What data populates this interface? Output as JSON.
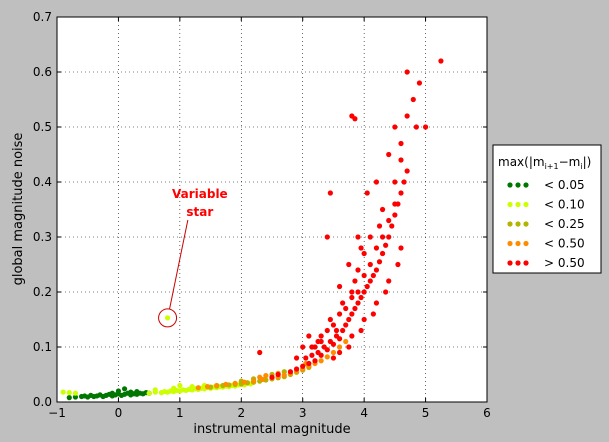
{
  "chart_data": {
    "type": "scatter",
    "xlabel": "instrumental magnitude",
    "ylabel": "global magnitude noise",
    "xlim": [
      -1,
      6
    ],
    "ylim": [
      0,
      0.7
    ],
    "x_ticks": [
      -1,
      0,
      1,
      2,
      3,
      4,
      5,
      6
    ],
    "x_tick_labels": [
      "−1",
      "0",
      "1",
      "2",
      "3",
      "4",
      "5",
      "6"
    ],
    "y_ticks": [
      0,
      0.1,
      0.2,
      0.3,
      0.4,
      0.5,
      0.6,
      0.7
    ],
    "y_tick_labels": [
      "0.0",
      "0.1",
      "0.2",
      "0.3",
      "0.4",
      "0.5",
      "0.6",
      "0.7"
    ],
    "grid": true,
    "legend": {
      "placement": "right",
      "title": "max(|m",
      "title_sub1": "i+1",
      "title_mid": "−m",
      "title_sub2": "i",
      "title_end": "|)",
      "entries": [
        {
          "label": "< 0.05",
          "color": "#007700"
        },
        {
          "label": "< 0.10",
          "color": "#ccff00"
        },
        {
          "label": "< 0.25",
          "color": "#b3b300"
        },
        {
          "label": "< 0.50",
          "color": "#ff8c00"
        },
        {
          "label": "> 0.50",
          "color": "#ff0000"
        }
      ]
    },
    "annotation": {
      "text_line1": "Variable",
      "text_line2": "star",
      "color": "#ff0000",
      "point": [
        0.8,
        0.153
      ],
      "text_anchor": [
        1.0,
        0.36
      ]
    },
    "series": [
      {
        "color": "#007700",
        "points": [
          [
            -0.8,
            0.008
          ],
          [
            -0.7,
            0.009
          ],
          [
            -0.6,
            0.01
          ],
          [
            -0.55,
            0.011
          ],
          [
            -0.5,
            0.009
          ],
          [
            -0.45,
            0.012
          ],
          [
            -0.4,
            0.01
          ],
          [
            -0.35,
            0.011
          ],
          [
            -0.3,
            0.013
          ],
          [
            -0.25,
            0.01
          ],
          [
            -0.2,
            0.012
          ],
          [
            -0.15,
            0.014
          ],
          [
            -0.1,
            0.011
          ],
          [
            -0.05,
            0.013
          ],
          [
            0.0,
            0.015
          ],
          [
            0.05,
            0.012
          ],
          [
            0.1,
            0.014
          ],
          [
            0.15,
            0.016
          ],
          [
            0.2,
            0.013
          ],
          [
            0.25,
            0.015
          ],
          [
            0.3,
            0.014
          ],
          [
            0.35,
            0.016
          ],
          [
            0.4,
            0.015
          ],
          [
            0.45,
            0.017
          ],
          [
            0.5,
            0.016
          ],
          [
            0.1,
            0.024
          ],
          [
            0.0,
            0.02
          ],
          [
            -0.1,
            0.016
          ],
          [
            0.2,
            0.018
          ],
          [
            0.3,
            0.019
          ]
        ]
      },
      {
        "color": "#ccff00",
        "points": [
          [
            -0.9,
            0.018
          ],
          [
            -0.8,
            0.017
          ],
          [
            -0.7,
            0.016
          ],
          [
            0.5,
            0.016
          ],
          [
            0.6,
            0.018
          ],
          [
            0.7,
            0.017
          ],
          [
            0.75,
            0.019
          ],
          [
            0.8,
            0.018
          ],
          [
            0.85,
            0.02
          ],
          [
            0.9,
            0.019
          ],
          [
            0.95,
            0.021
          ],
          [
            1.0,
            0.02
          ],
          [
            1.05,
            0.022
          ],
          [
            1.1,
            0.021
          ],
          [
            1.15,
            0.023
          ],
          [
            1.2,
            0.022
          ],
          [
            1.25,
            0.024
          ],
          [
            1.3,
            0.023
          ],
          [
            1.35,
            0.025
          ],
          [
            1.4,
            0.024
          ],
          [
            1.45,
            0.026
          ],
          [
            1.5,
            0.025
          ],
          [
            1.55,
            0.027
          ],
          [
            1.6,
            0.026
          ],
          [
            1.65,
            0.028
          ],
          [
            1.7,
            0.027
          ],
          [
            1.75,
            0.029
          ],
          [
            1.8,
            0.028
          ],
          [
            1.85,
            0.03
          ],
          [
            1.9,
            0.029
          ],
          [
            1.95,
            0.031
          ],
          [
            2.0,
            0.032
          ],
          [
            2.05,
            0.031
          ],
          [
            2.1,
            0.034
          ],
          [
            2.15,
            0.033
          ],
          [
            2.2,
            0.036
          ],
          [
            0.8,
            0.153
          ],
          [
            0.6,
            0.022
          ],
          [
            0.9,
            0.025
          ],
          [
            1.0,
            0.03
          ],
          [
            1.2,
            0.028
          ],
          [
            1.4,
            0.03
          ]
        ]
      },
      {
        "color": "#b3b300",
        "points": [
          [
            1.5,
            0.027
          ],
          [
            1.6,
            0.029
          ],
          [
            1.7,
            0.03
          ],
          [
            1.8,
            0.031
          ],
          [
            1.9,
            0.032
          ],
          [
            2.0,
            0.033
          ],
          [
            2.1,
            0.035
          ],
          [
            2.2,
            0.036
          ],
          [
            2.3,
            0.038
          ],
          [
            2.4,
            0.04
          ],
          [
            2.5,
            0.042
          ],
          [
            2.6,
            0.044
          ],
          [
            2.7,
            0.046
          ],
          [
            2.8,
            0.05
          ],
          [
            2.9,
            0.054
          ],
          [
            3.0,
            0.058
          ],
          [
            3.1,
            0.063
          ],
          [
            2.5,
            0.05
          ],
          [
            2.7,
            0.055
          ],
          [
            2.2,
            0.042
          ],
          [
            2.0,
            0.038
          ]
        ]
      },
      {
        "color": "#ff8c00",
        "points": [
          [
            1.3,
            0.026
          ],
          [
            1.45,
            0.028
          ],
          [
            1.6,
            0.03
          ],
          [
            1.75,
            0.032
          ],
          [
            1.9,
            0.034
          ],
          [
            2.05,
            0.036
          ],
          [
            2.2,
            0.038
          ],
          [
            2.35,
            0.041
          ],
          [
            2.5,
            0.044
          ],
          [
            2.6,
            0.046
          ],
          [
            2.7,
            0.049
          ],
          [
            2.8,
            0.052
          ],
          [
            2.9,
            0.056
          ],
          [
            3.0,
            0.06
          ],
          [
            3.1,
            0.065
          ],
          [
            3.2,
            0.07
          ],
          [
            3.3,
            0.075
          ],
          [
            3.4,
            0.082
          ],
          [
            3.5,
            0.09
          ],
          [
            3.6,
            0.1
          ],
          [
            3.7,
            0.11
          ],
          [
            2.4,
            0.048
          ],
          [
            2.6,
            0.052
          ],
          [
            3.05,
            0.07
          ],
          [
            2.3,
            0.045
          ]
        ]
      },
      {
        "color": "#ff0000",
        "points": [
          [
            2.3,
            0.09
          ],
          [
            2.5,
            0.045
          ],
          [
            2.6,
            0.05
          ],
          [
            2.8,
            0.055
          ],
          [
            2.9,
            0.06
          ],
          [
            3.0,
            0.065
          ],
          [
            3.05,
            0.08
          ],
          [
            3.1,
            0.07
          ],
          [
            3.15,
            0.085
          ],
          [
            3.2,
            0.075
          ],
          [
            3.25,
            0.09
          ],
          [
            3.3,
            0.085
          ],
          [
            3.35,
            0.1
          ],
          [
            3.4,
            0.095
          ],
          [
            3.45,
            0.11
          ],
          [
            3.5,
            0.105
          ],
          [
            3.55,
            0.12
          ],
          [
            3.6,
            0.115
          ],
          [
            3.65,
            0.13
          ],
          [
            3.7,
            0.14
          ],
          [
            3.75,
            0.15
          ],
          [
            3.8,
            0.16
          ],
          [
            3.85,
            0.17
          ],
          [
            3.9,
            0.18
          ],
          [
            3.95,
            0.19
          ],
          [
            4.0,
            0.2
          ],
          [
            4.05,
            0.21
          ],
          [
            4.1,
            0.22
          ],
          [
            4.15,
            0.23
          ],
          [
            4.2,
            0.24
          ],
          [
            4.25,
            0.255
          ],
          [
            4.3,
            0.27
          ],
          [
            4.35,
            0.285
          ],
          [
            4.4,
            0.3
          ],
          [
            4.45,
            0.32
          ],
          [
            4.5,
            0.34
          ],
          [
            4.55,
            0.36
          ],
          [
            4.6,
            0.38
          ],
          [
            4.65,
            0.4
          ],
          [
            4.7,
            0.42
          ],
          [
            3.3,
            0.12
          ],
          [
            3.5,
            0.14
          ],
          [
            3.7,
            0.17
          ],
          [
            3.9,
            0.2
          ],
          [
            4.1,
            0.25
          ],
          [
            4.3,
            0.3
          ],
          [
            4.5,
            0.36
          ],
          [
            3.4,
            0.13
          ],
          [
            3.6,
            0.16
          ],
          [
            3.8,
            0.19
          ],
          [
            4.0,
            0.23
          ],
          [
            4.2,
            0.28
          ],
          [
            4.4,
            0.33
          ],
          [
            3.2,
            0.1
          ],
          [
            3.6,
            0.09
          ],
          [
            3.8,
            0.12
          ],
          [
            4.0,
            0.15
          ],
          [
            4.2,
            0.18
          ],
          [
            4.4,
            0.22
          ],
          [
            4.6,
            0.28
          ],
          [
            3.5,
            0.08
          ],
          [
            3.75,
            0.1
          ],
          [
            3.95,
            0.13
          ],
          [
            4.15,
            0.16
          ],
          [
            4.35,
            0.2
          ],
          [
            4.55,
            0.25
          ],
          [
            3.9,
            0.24
          ],
          [
            4.0,
            0.27
          ],
          [
            4.1,
            0.3
          ],
          [
            3.85,
            0.22
          ],
          [
            3.3,
            0.11
          ],
          [
            3.15,
            0.1
          ],
          [
            3.45,
            0.15
          ],
          [
            3.65,
            0.18
          ],
          [
            3.8,
            0.2
          ],
          [
            3.9,
            0.3
          ],
          [
            3.6,
            0.21
          ],
          [
            3.75,
            0.25
          ],
          [
            4.3,
            0.35
          ],
          [
            4.5,
            0.4
          ],
          [
            4.6,
            0.44
          ],
          [
            4.4,
            0.45
          ],
          [
            4.2,
            0.4
          ],
          [
            4.05,
            0.38
          ],
          [
            4.5,
            0.5
          ],
          [
            4.6,
            0.47
          ],
          [
            4.7,
            0.52
          ],
          [
            4.85,
            0.5
          ],
          [
            4.8,
            0.55
          ],
          [
            4.7,
            0.6
          ],
          [
            4.9,
            0.58
          ],
          [
            5.0,
            0.5
          ],
          [
            5.25,
            0.62
          ],
          [
            3.8,
            0.52
          ],
          [
            3.85,
            0.515
          ],
          [
            3.45,
            0.38
          ],
          [
            3.4,
            0.3
          ],
          [
            3.0,
            0.1
          ],
          [
            3.1,
            0.12
          ],
          [
            3.25,
            0.11
          ],
          [
            3.55,
            0.13
          ],
          [
            2.9,
            0.08
          ],
          [
            3.95,
            0.28
          ],
          [
            4.25,
            0.32
          ]
        ]
      }
    ]
  }
}
